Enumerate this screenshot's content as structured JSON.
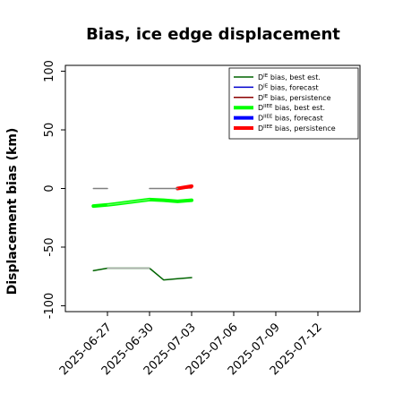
{
  "chart_data": {
    "type": "line",
    "title": "Bias, ice edge displacement",
    "ylabel": "Displacement bias (km)",
    "xlabel": "",
    "ylim": [
      -105,
      105
    ],
    "yticks": [
      -100,
      -50,
      0,
      50,
      100
    ],
    "x_range": [
      "2025-06-24",
      "2025-07-15"
    ],
    "xticks": [
      "2025-06-27",
      "2025-06-30",
      "2025-07-03",
      "2025-07-06",
      "2025-07-09",
      "2025-07-12"
    ],
    "highlight_tick": "2025-07-03",
    "highlight_color": "#1f8f1f",
    "grid": false,
    "legend_position": "top-right",
    "series": [
      {
        "name": "D^IE bias, best est.",
        "color": "#006400",
        "width": 1.5,
        "x": [
          "2025-06-26",
          "2025-06-27",
          "2025-06-28",
          "2025-06-29",
          "2025-06-30",
          "2025-07-01",
          "2025-07-02",
          "2025-07-03"
        ],
        "y": [
          -70,
          -68,
          -68,
          -68,
          -68,
          -78,
          -77,
          -76
        ]
      },
      {
        "name": "D^IE bias, forecast",
        "color": "#0000cd",
        "width": 1.5,
        "x": [],
        "y": []
      },
      {
        "name": "D^IE bias, persistence",
        "color": "#8b0000",
        "width": 1.5,
        "x": [
          "2025-07-02",
          "2025-07-03"
        ],
        "y": [
          0,
          0.5
        ]
      },
      {
        "name": "D^IIEE bias, best est.",
        "color": "#00ff00",
        "width": 4,
        "x": [
          "2025-06-26",
          "2025-06-27",
          "2025-06-28",
          "2025-06-29",
          "2025-06-30",
          "2025-07-01",
          "2025-07-02",
          "2025-07-03"
        ],
        "y": [
          -15,
          -14,
          -12.5,
          -11,
          -9.5,
          -10,
          -11,
          -10
        ]
      },
      {
        "name": "D^IIEE bias, forecast",
        "color": "#0000ff",
        "width": 4,
        "x": [],
        "y": []
      },
      {
        "name": "D^IIEE bias, persistence",
        "color": "#ff0000",
        "width": 4,
        "x": [
          "2025-07-02",
          "2025-07-03"
        ],
        "y": [
          0,
          2
        ]
      },
      {
        "name": "",
        "color": "#808080",
        "width": 1.5,
        "x": [
          "2025-06-26",
          "2025-06-27"
        ],
        "y": [
          0,
          0
        ]
      },
      {
        "name": "",
        "color": "#808080",
        "width": 1.5,
        "x": [
          "2025-06-30",
          "2025-07-01",
          "2025-07-02"
        ],
        "y": [
          0,
          0,
          0
        ]
      },
      {
        "name": "",
        "color": "#b0b0b0",
        "width": 1.2,
        "x": [
          "2025-06-27",
          "2025-06-28",
          "2025-06-29",
          "2025-06-30"
        ],
        "y": [
          -68,
          -68,
          -68,
          -68
        ]
      },
      {
        "name": "",
        "color": "#66ff66",
        "width": 1.2,
        "x": [
          "2025-06-27",
          "2025-06-28",
          "2025-06-29",
          "2025-06-30"
        ],
        "y": [
          -14,
          -12.5,
          -11,
          -9.5
        ]
      }
    ],
    "legend": [
      {
        "base": "D",
        "sup": "IE",
        "rest": " bias, best est.",
        "color": "#006400",
        "width": 1.5
      },
      {
        "base": "D",
        "sup": "IE",
        "rest": " bias, forecast",
        "color": "#0000cd",
        "width": 1.5
      },
      {
        "base": "D",
        "sup": "IE",
        "rest": " bias, persistence",
        "color": "#8b0000",
        "width": 1.5
      },
      {
        "base": "D",
        "sup": "IIEE",
        "rest": " bias, best est.",
        "color": "#00ff00",
        "width": 4
      },
      {
        "base": "D",
        "sup": "IIEE",
        "rest": " bias, forecast",
        "color": "#0000ff",
        "width": 4
      },
      {
        "base": "D",
        "sup": "IIEE",
        "rest": " bias, persistence",
        "color": "#ff0000",
        "width": 4
      }
    ]
  }
}
